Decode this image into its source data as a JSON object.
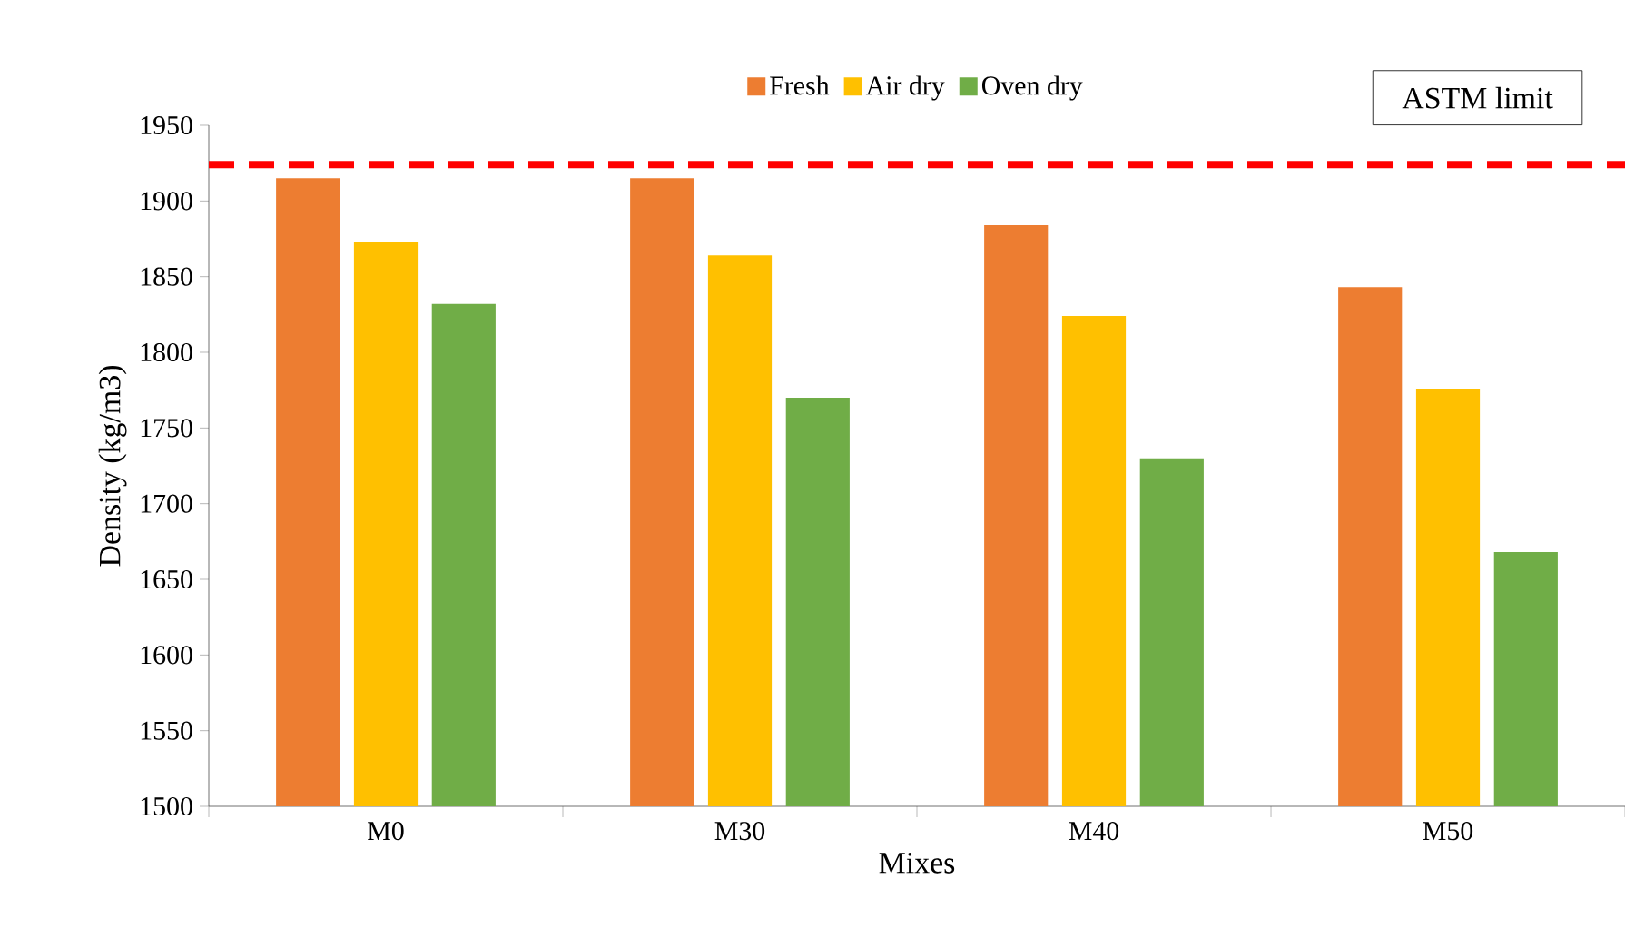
{
  "chart_data": {
    "type": "bar",
    "xlabel": "Mixes",
    "ylabel": "Density (kg/m3)",
    "categories": [
      "M0",
      "M30",
      "M40",
      "M50"
    ],
    "series": [
      {
        "name": "Fresh",
        "color": "#ed7d31",
        "values": [
          1915,
          1915,
          1884,
          1843
        ]
      },
      {
        "name": "Air dry",
        "color": "#ffc000",
        "values": [
          1873,
          1864,
          1824,
          1776
        ]
      },
      {
        "name": "Oven dry",
        "color": "#70ad47",
        "values": [
          1832,
          1770,
          1730,
          1668
        ]
      }
    ],
    "ylim": [
      1500,
      1950
    ],
    "yticks": [
      1500,
      1550,
      1600,
      1650,
      1700,
      1750,
      1800,
      1850,
      1900,
      1950
    ],
    "ref_lines": [
      {
        "axis": "y",
        "value": 1924,
        "label": "ASTM limit",
        "color": "#ff0000",
        "line_style": "dashed"
      }
    ],
    "grid": false,
    "legend": "top"
  }
}
